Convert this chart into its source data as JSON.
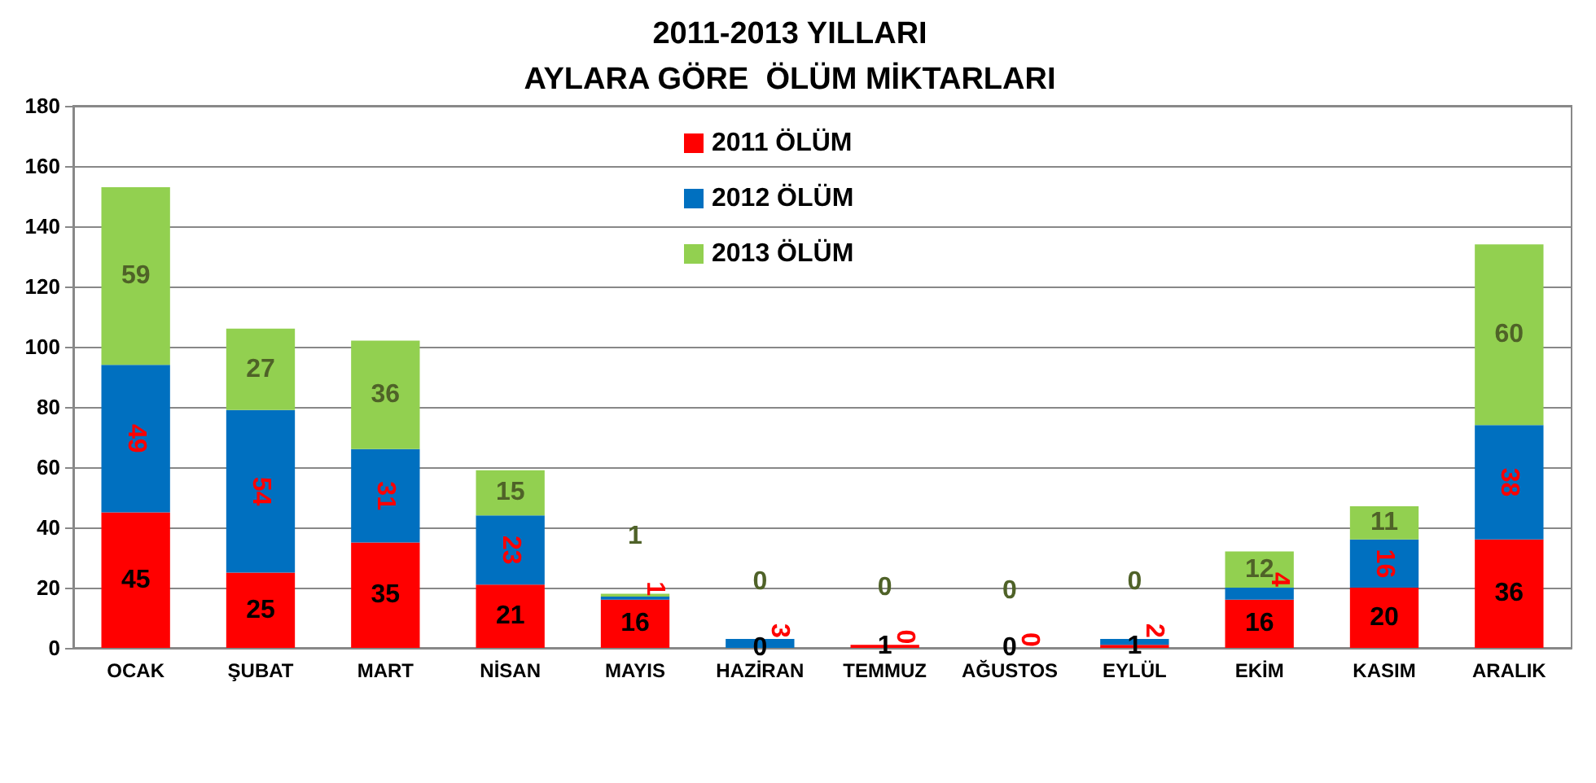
{
  "chart_data": {
    "type": "bar",
    "title": "2011-2013 YILLARI\nAYLARA GÖRE  ÖLÜM MİKTARLARI",
    "stacked": true,
    "data_labels": true,
    "grid": "y",
    "legend": "top",
    "ylim": [
      0,
      180
    ],
    "yticks": [
      0,
      20,
      40,
      60,
      80,
      100,
      120,
      140,
      160,
      180
    ],
    "categories": [
      "OCAK",
      "ŞUBAT",
      "MART",
      "NİSAN",
      "MAYIS",
      "HAZİRAN",
      "TEMMUZ",
      "AĞUSTOS",
      "EYLÜL",
      "EKİM",
      "KASIM",
      "ARALIK"
    ],
    "series": [
      {
        "name": "2011 ÖLÜM",
        "color": "#ff0000",
        "values": [
          45,
          25,
          35,
          21,
          16,
          0,
          1,
          0,
          1,
          16,
          20,
          36
        ]
      },
      {
        "name": "2012 ÖLÜM",
        "color": "#0070c0",
        "values": [
          49,
          54,
          31,
          23,
          1,
          3,
          0,
          0,
          2,
          4,
          16,
          38
        ]
      },
      {
        "name": "2013 ÖLÜM",
        "color": "#92d050",
        "values": [
          59,
          27,
          36,
          15,
          1,
          0,
          0,
          0,
          0,
          12,
          11,
          60
        ]
      }
    ]
  }
}
